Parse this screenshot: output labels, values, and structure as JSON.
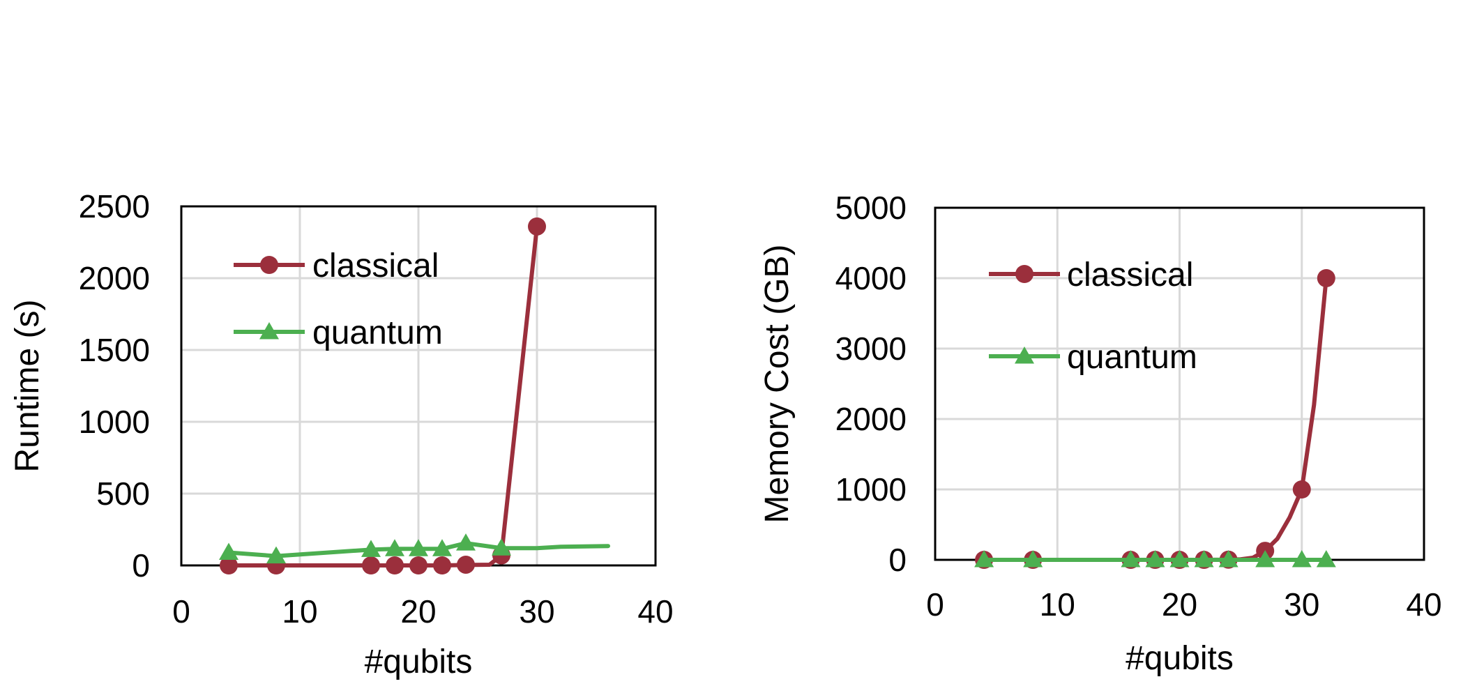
{
  "colors": {
    "classical": "#9b2f3c",
    "quantum": "#4caf50",
    "grid": "#d9d9d9",
    "frame": "#000000"
  },
  "chart_data": [
    {
      "type": "line",
      "xlabel": "#qubits",
      "ylabel": "Runtime (s)",
      "xlim": [
        0,
        40
      ],
      "ylim": [
        0,
        2500
      ],
      "xticks": [
        0,
        10,
        20,
        30,
        40
      ],
      "yticks": [
        0,
        500,
        1000,
        1500,
        2000,
        2500
      ],
      "grid": true,
      "legend_position": "top-left",
      "series": [
        {
          "name": "classical",
          "marker": "circle",
          "color_key": "classical",
          "x": [
            4,
            8,
            16,
            18,
            20,
            22,
            24,
            27,
            30
          ],
          "y": [
            0,
            0,
            0,
            0,
            0,
            0,
            5,
            70,
            2360
          ],
          "line_x": [
            4,
            8,
            16,
            18,
            20,
            22,
            24,
            26,
            27,
            30
          ],
          "line_y": [
            0,
            0,
            0,
            0,
            0,
            0,
            3,
            5,
            70,
            2360
          ]
        },
        {
          "name": "quantum",
          "marker": "triangle",
          "color_key": "quantum",
          "x": [
            4,
            8,
            16,
            18,
            20,
            22,
            24,
            27
          ],
          "y": [
            90,
            65,
            110,
            115,
            115,
            115,
            155,
            120
          ],
          "line_x": [
            4,
            8,
            16,
            18,
            20,
            22,
            24,
            27,
            30,
            32,
            36
          ],
          "line_y": [
            90,
            65,
            110,
            115,
            115,
            115,
            155,
            120,
            120,
            130,
            135
          ]
        }
      ]
    },
    {
      "type": "line",
      "xlabel": "#qubits",
      "ylabel": "Memory Cost (GB)",
      "xlim": [
        0,
        40
      ],
      "ylim": [
        0,
        5000
      ],
      "xticks": [
        0,
        10,
        20,
        30,
        40
      ],
      "yticks": [
        0,
        1000,
        2000,
        3000,
        4000,
        5000
      ],
      "grid": true,
      "legend_position": "top-left",
      "series": [
        {
          "name": "classical",
          "marker": "circle",
          "color_key": "classical",
          "x": [
            4,
            8,
            16,
            18,
            20,
            22,
            24,
            27,
            30,
            32
          ],
          "y": [
            0,
            0,
            0,
            0,
            0,
            0,
            2,
            128,
            1000,
            4000
          ],
          "line_x": [
            4,
            8,
            16,
            18,
            20,
            22,
            24,
            25,
            26,
            27,
            28,
            29,
            30,
            31,
            32
          ],
          "line_y": [
            0,
            0,
            0,
            0,
            0,
            0,
            2,
            8,
            30,
            128,
            300,
            600,
            1000,
            2200,
            4000
          ]
        },
        {
          "name": "quantum",
          "marker": "triangle",
          "color_key": "quantum",
          "x": [
            4,
            8,
            16,
            18,
            20,
            22,
            24,
            27,
            30,
            32
          ],
          "y": [
            0,
            0,
            0,
            0,
            0,
            0,
            0,
            0,
            0,
            0
          ],
          "line_x": [
            4,
            8,
            16,
            18,
            20,
            22,
            24,
            27,
            30,
            32
          ],
          "line_y": [
            0,
            0,
            0,
            0,
            0,
            0,
            0,
            0,
            0,
            0
          ]
        }
      ]
    }
  ]
}
